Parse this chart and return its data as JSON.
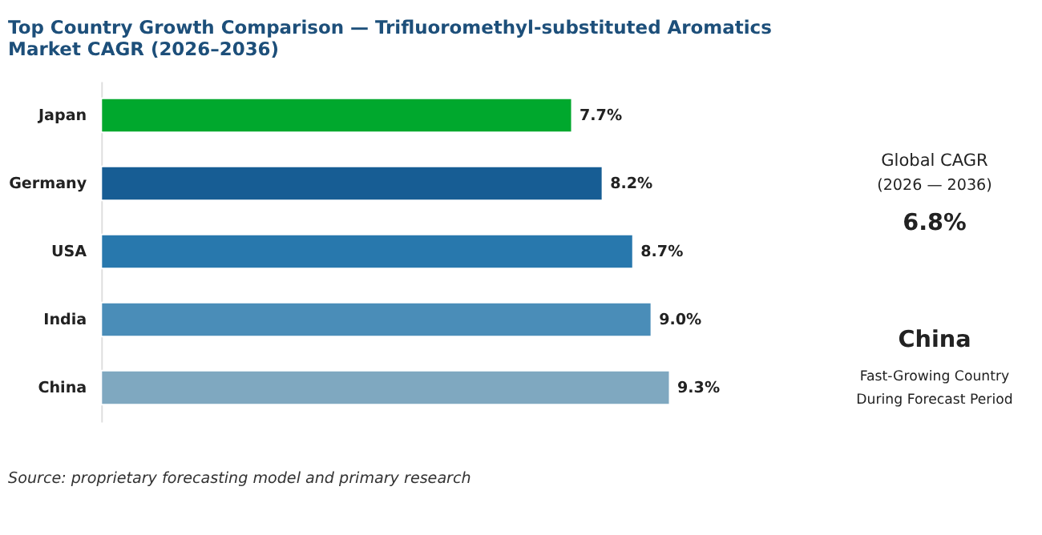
{
  "chart_data": [
    {
      "type": "bar",
      "orientation": "horizontal",
      "title": "Top Country Growth Comparison — Trifluoromethyl-substituted Aromatics Market CAGR (2026–2036)",
      "categories": [
        "Japan",
        "Germany",
        "USA",
        "India",
        "China"
      ],
      "values": [
        7.7,
        8.2,
        8.7,
        9.0,
        9.3
      ],
      "colors": [
        "#00a82d",
        "#175d94",
        "#2878ad",
        "#4a8db8",
        "#7fa8c0"
      ],
      "value_labels": [
        "7.7%",
        "8.2%",
        "8.7%",
        "9.0%",
        "9.3%"
      ],
      "grid": false,
      "annotations": [
        "Source: proprietary forecasting model and primary research"
      ]
    },
    {
      "type": "other",
      "annotations": [
        "Global CAGR",
        "(2026 — 2036)",
        "6.8%",
        "China",
        "Fast-Growing Country",
        "During Forecast Period"
      ]
    }
  ]
}
